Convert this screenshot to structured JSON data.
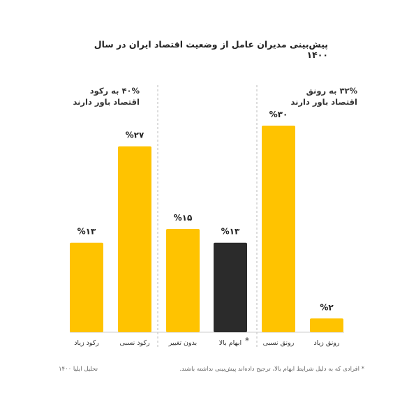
{
  "chart_data": {
    "type": "bar",
    "title": "پیش‌بینی مدیران عامل از وضعیت اقتصاد ایران در سال ۱۴۰۰",
    "categories": [
      "رونق زیاد",
      "رونق نسبی",
      "ابهام بالا",
      "بدون تغییر",
      "رکود نسبی",
      "رکود زیاد"
    ],
    "values": [
      2,
      30,
      13,
      15,
      27,
      13
    ],
    "value_labels": [
      "%۲",
      "%۳۰",
      "%۱۳",
      "%۱۵",
      "%۲۷",
      "%۱۳"
    ],
    "ylim": [
      0,
      30
    ],
    "colors": [
      "#FFC300",
      "#FFC300",
      "#2B2B2B",
      "#FFC300",
      "#FFC300",
      "#FFC300"
    ],
    "groups": [
      {
        "line1": "۳۲% به رونق",
        "line2": "اقتصاد باور دارند"
      },
      {
        "line1": "۴۰% به رکود",
        "line2": "اقتصاد باور دارند"
      }
    ],
    "category_marks": [
      "",
      "",
      "*",
      "",
      "",
      ""
    ],
    "grid": false
  },
  "footnote": "* افرادی که به دلیل شرایط ابهام بالا، ترجیح داده‌اند پیش‌بینی نداشته باشند.",
  "source": "تحلیل ایلیا ۱۴۰۰"
}
